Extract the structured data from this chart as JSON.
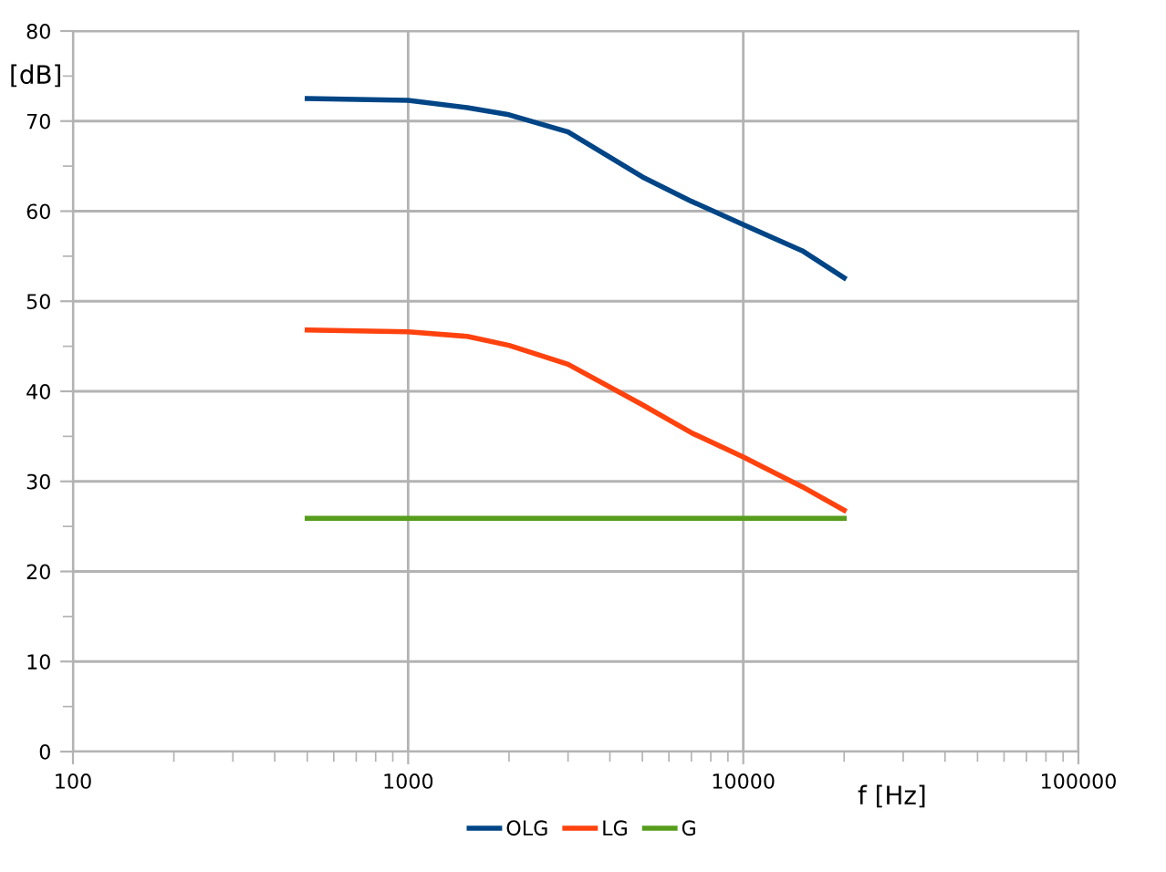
{
  "chart_data": {
    "type": "line",
    "xlabel": "f [Hz]",
    "ylabel": "[dB]",
    "log": "x",
    "xlim": [
      100,
      100000
    ],
    "xticks": [
      100,
      1000,
      10000,
      100000
    ],
    "ylim": [
      0,
      80
    ],
    "yticks": [
      0,
      {
        "value": 5,
        "label": null
      },
      10,
      {
        "value": 15,
        "label": null
      },
      20,
      {
        "value": 25,
        "label": null
      },
      30,
      {
        "value": 35,
        "label": null
      },
      40,
      {
        "value": 45,
        "label": null
      },
      50,
      {
        "value": 55,
        "label": null
      },
      60,
      {
        "value": 65,
        "label": null
      },
      70,
      {
        "value": 75,
        "label": null
      },
      80
    ],
    "x": [
      500,
      1000,
      1500,
      2000,
      3000,
      5000,
      7000,
      10000,
      15000,
      20000
    ],
    "series": [
      {
        "name": "OLG",
        "color": "#004586",
        "values": [
          72.5,
          72.3,
          71.5,
          70.7,
          68.8,
          63.8,
          61.1,
          58.5,
          55.6,
          52.6
        ]
      },
      {
        "name": "LG",
        "color": "#ff420e",
        "values": [
          46.8,
          46.6,
          46.1,
          45.1,
          43.0,
          38.5,
          35.4,
          32.7,
          29.4,
          26.8
        ]
      },
      {
        "name": "G",
        "color": "#579d1c",
        "values": [
          25.9,
          25.9,
          25.9,
          25.9,
          25.9,
          25.9,
          25.9,
          25.9,
          25.9,
          25.9
        ]
      }
    ],
    "grid": true,
    "legend": "bottom",
    "marker": "none",
    "line_style": "solid"
  }
}
